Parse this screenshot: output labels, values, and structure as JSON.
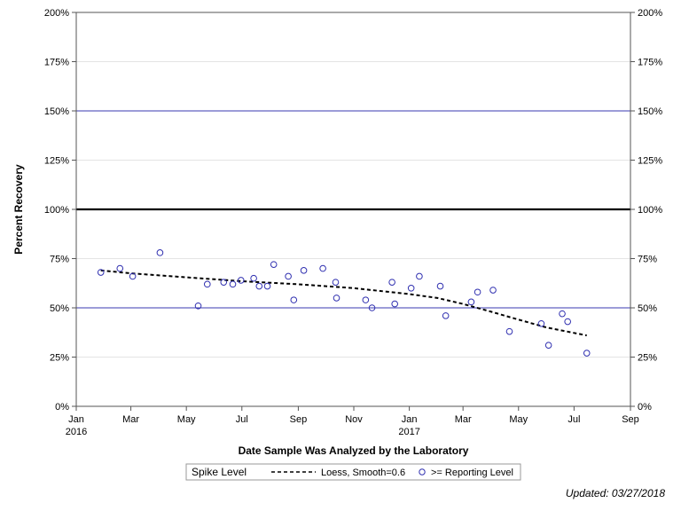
{
  "chart_data": {
    "type": "scatter",
    "ylabel": "Percent Recovery",
    "xlabel": "Date Sample Was Analyzed by the Laboratory",
    "y_axis": {
      "min": 0,
      "max": 200,
      "ticks": [
        0,
        25,
        50,
        75,
        100,
        125,
        150,
        175,
        200
      ],
      "tick_labels": [
        "0%",
        "25%",
        "50%",
        "75%",
        "100%",
        "125%",
        "150%",
        "175%",
        "200%"
      ],
      "mirrored_right": true
    },
    "x_axis": {
      "min": "2016-01-01",
      "max": "2017-09-01",
      "ticks": [
        "2016-01-01",
        "2016-03-01",
        "2016-05-01",
        "2016-07-01",
        "2016-09-01",
        "2016-11-01",
        "2017-01-01",
        "2017-03-01",
        "2017-05-01",
        "2017-07-01",
        "2017-09-01"
      ],
      "tick_labels": [
        "Jan",
        "Mar",
        "May",
        "Jul",
        "Sep",
        "Nov",
        "Jan",
        "Mar",
        "May",
        "Jul",
        "Sep"
      ],
      "year_labels": [
        {
          "at": "2016-01-01",
          "label": "2016"
        },
        {
          "at": "2017-01-01",
          "label": "2017"
        }
      ]
    },
    "grid": true,
    "reference_lines": [
      {
        "y": 150,
        "color": "#3a3ab0",
        "style": "thin"
      },
      {
        "y": 100,
        "color": "#000000",
        "style": "thick"
      },
      {
        "y": 50,
        "color": "#3a3ab0",
        "style": "thin"
      }
    ],
    "series": [
      {
        "name": ">= Reporting Level",
        "type": "scatter",
        "marker": "open-circle",
        "color": "#3030b0",
        "points": [
          {
            "x": "2016-01-28",
            "y": 68
          },
          {
            "x": "2016-02-18",
            "y": 70
          },
          {
            "x": "2016-03-03",
            "y": 66
          },
          {
            "x": "2016-04-02",
            "y": 78
          },
          {
            "x": "2016-05-14",
            "y": 51
          },
          {
            "x": "2016-05-24",
            "y": 62
          },
          {
            "x": "2016-06-11",
            "y": 63
          },
          {
            "x": "2016-06-21",
            "y": 62
          },
          {
            "x": "2016-06-30",
            "y": 64
          },
          {
            "x": "2016-07-14",
            "y": 65
          },
          {
            "x": "2016-07-20",
            "y": 61
          },
          {
            "x": "2016-07-29",
            "y": 61
          },
          {
            "x": "2016-08-05",
            "y": 72
          },
          {
            "x": "2016-08-21",
            "y": 66
          },
          {
            "x": "2016-08-27",
            "y": 54
          },
          {
            "x": "2016-09-07",
            "y": 69
          },
          {
            "x": "2016-09-28",
            "y": 70
          },
          {
            "x": "2016-10-12",
            "y": 63
          },
          {
            "x": "2016-10-13",
            "y": 55
          },
          {
            "x": "2016-11-14",
            "y": 54
          },
          {
            "x": "2016-11-21",
            "y": 50
          },
          {
            "x": "2016-12-13",
            "y": 63
          },
          {
            "x": "2016-12-16",
            "y": 52
          },
          {
            "x": "2017-01-03",
            "y": 60
          },
          {
            "x": "2017-01-12",
            "y": 66
          },
          {
            "x": "2017-02-04",
            "y": 61
          },
          {
            "x": "2017-02-10",
            "y": 46
          },
          {
            "x": "2017-03-10",
            "y": 53
          },
          {
            "x": "2017-03-17",
            "y": 58
          },
          {
            "x": "2017-04-03",
            "y": 59
          },
          {
            "x": "2017-04-21",
            "y": 38
          },
          {
            "x": "2017-05-26",
            "y": 42
          },
          {
            "x": "2017-06-03",
            "y": 31
          },
          {
            "x": "2017-06-18",
            "y": 47
          },
          {
            "x": "2017-06-24",
            "y": 43
          },
          {
            "x": "2017-07-15",
            "y": 27
          }
        ]
      },
      {
        "name": "Loess, Smooth=0.6",
        "type": "line",
        "style": "dashed",
        "color": "#000000",
        "points": [
          {
            "x": "2016-01-28",
            "y": 69
          },
          {
            "x": "2016-03-01",
            "y": 67.5
          },
          {
            "x": "2016-05-01",
            "y": 65.5
          },
          {
            "x": "2016-07-01",
            "y": 63.5
          },
          {
            "x": "2016-09-01",
            "y": 62
          },
          {
            "x": "2016-11-01",
            "y": 60
          },
          {
            "x": "2017-01-01",
            "y": 57
          },
          {
            "x": "2017-02-01",
            "y": 55
          },
          {
            "x": "2017-03-01",
            "y": 52
          },
          {
            "x": "2017-04-01",
            "y": 48
          },
          {
            "x": "2017-05-01",
            "y": 44
          },
          {
            "x": "2017-06-01",
            "y": 40
          },
          {
            "x": "2017-07-15",
            "y": 36
          }
        ]
      }
    ],
    "legend": {
      "placement": "bottom",
      "title": "Spike Level",
      "entries": [
        {
          "label": "Loess, Smooth=0.6",
          "symbol": "dashed-line"
        },
        {
          "label": ">= Reporting Level",
          "symbol": "open-circle"
        }
      ]
    },
    "footnote": "Updated: 03/27/2018"
  }
}
